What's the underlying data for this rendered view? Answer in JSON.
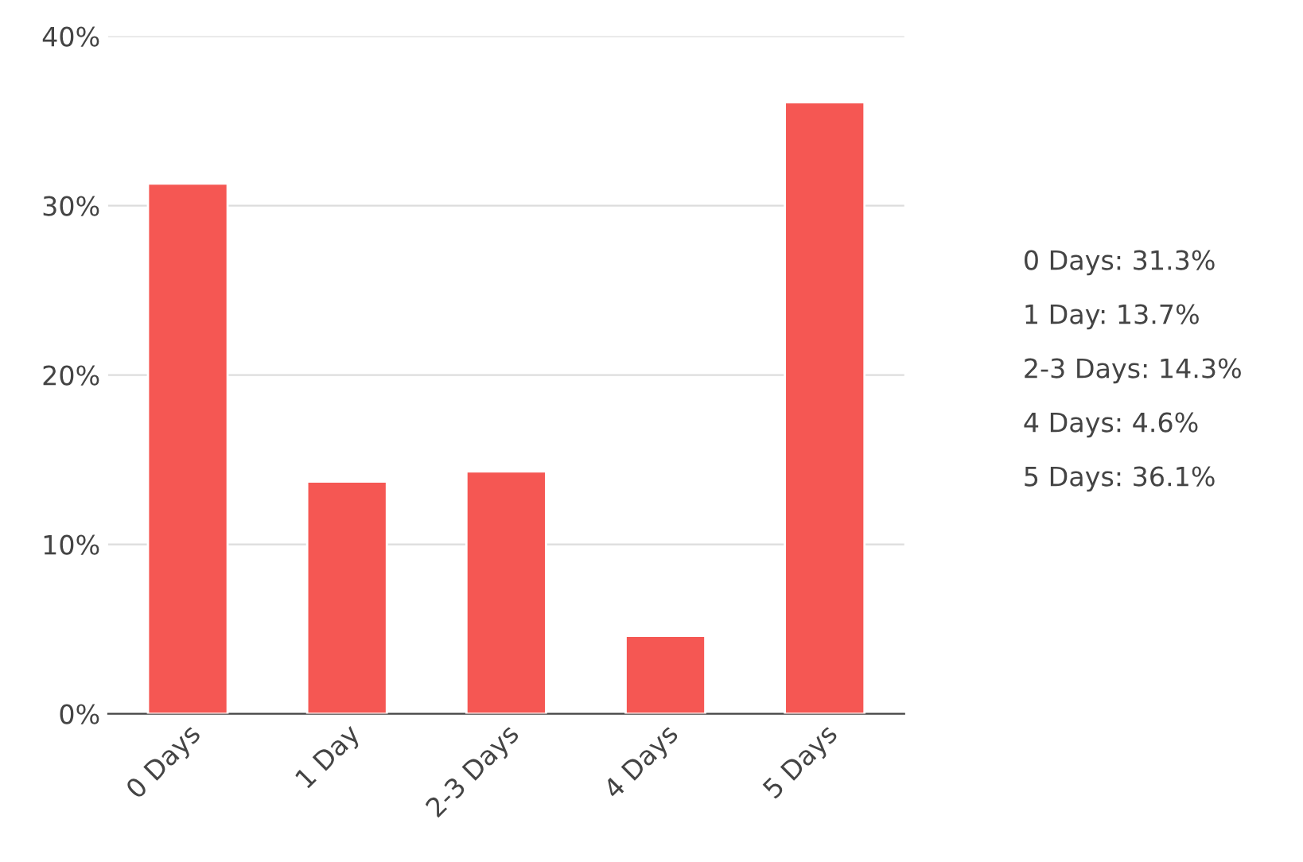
{
  "chart_data": {
    "type": "bar",
    "categories": [
      "0 Days",
      "1 Day",
      "2-3 Days",
      "4 Days",
      "5 Days"
    ],
    "values": [
      31.3,
      13.7,
      14.3,
      4.6,
      36.1
    ],
    "color": "#f55753",
    "annotations": [
      "0 Days: 31.3%",
      "1 Day: 13.7%",
      "2-3 Days: 14.3%",
      "4 Days: 4.6%",
      "5 Days: 36.1%"
    ],
    "ylim": [
      0,
      40
    ],
    "yticks": [
      {
        "value": 0,
        "label": "0%"
      },
      {
        "value": 10,
        "label": "10%"
      },
      {
        "value": 20,
        "label": "20%"
      },
      {
        "value": 30,
        "label": "30%"
      },
      {
        "value": 40,
        "label": "40%"
      }
    ],
    "grid": "y"
  }
}
